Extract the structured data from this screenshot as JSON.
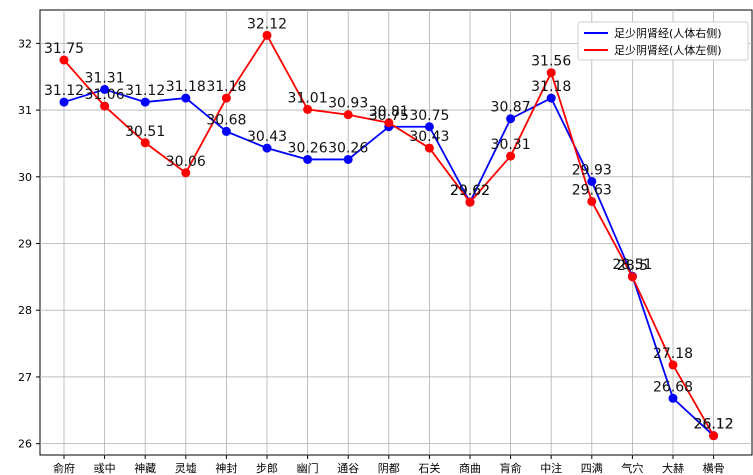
{
  "chart_data": {
    "type": "line",
    "title": "",
    "xlabel": "",
    "ylabel": "",
    "categories": [
      "俞府",
      "彧中",
      "神藏",
      "灵墟",
      "神封",
      "步郎",
      "幽门",
      "通谷",
      "阴都",
      "石关",
      "商曲",
      "肓俞",
      "中注",
      "四满",
      "气穴",
      "大赫",
      "横骨"
    ],
    "series": [
      {
        "name": "足少阴肾经(人体右侧)",
        "color": "#0000ff",
        "values": [
          31.12,
          31.31,
          31.12,
          31.18,
          30.68,
          30.43,
          30.26,
          30.26,
          30.75,
          30.75,
          29.62,
          30.87,
          31.18,
          29.93,
          28.51,
          26.68,
          26.12
        ],
        "labels": [
          "31.12",
          "31.31",
          "31.12",
          "31.18",
          "30.68",
          "30.43",
          "30.26",
          "30.26",
          "30.75",
          "30.75",
          "29.62",
          "30.87",
          "31.18",
          "29.93",
          "28.51",
          "26.68",
          "26.12"
        ]
      },
      {
        "name": "足少阴肾经(人体左侧)",
        "color": "#ff0000",
        "values": [
          31.75,
          31.06,
          30.51,
          30.06,
          31.18,
          32.12,
          31.01,
          30.93,
          30.81,
          30.43,
          29.62,
          30.31,
          31.56,
          29.63,
          28.5,
          27.18,
          26.12
        ],
        "labels": [
          "31.75",
          "31.06",
          "30.51",
          "30.06",
          "31.18",
          "32.12",
          "31.01",
          "30.93",
          "30.81",
          "30.43",
          "29.62",
          "30.31",
          "31.56",
          "29.63",
          "28.5",
          "27.18",
          "26.12"
        ]
      }
    ],
    "yticks": [
      "26",
      "27",
      "28",
      "29",
      "30",
      "31",
      "32"
    ],
    "ylim": [
      25.83,
      32.5
    ],
    "grid": true,
    "legend_position": "top-right"
  }
}
